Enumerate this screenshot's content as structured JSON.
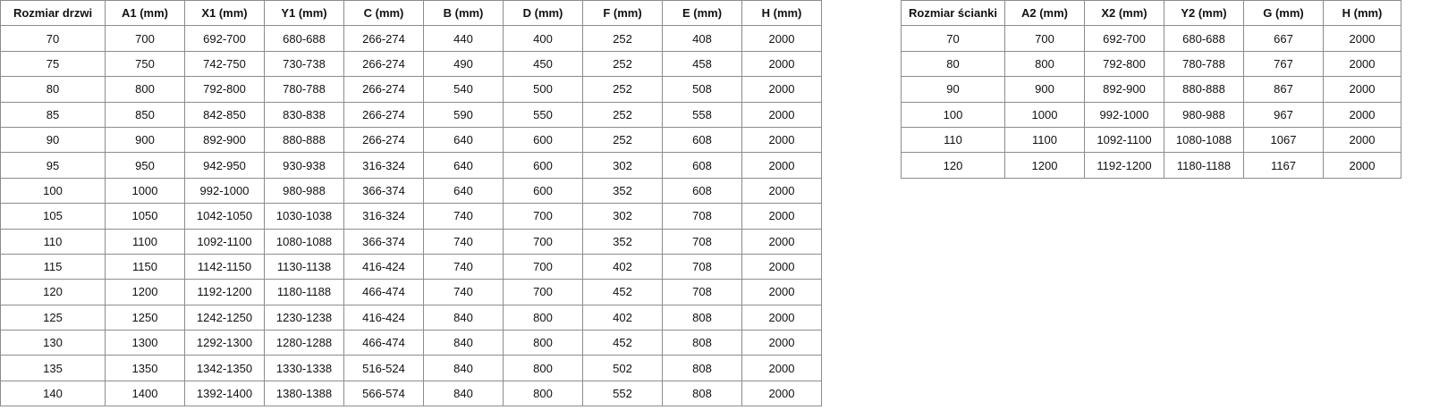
{
  "door_table": {
    "headers": [
      "Rozmiar drzwi",
      "A1 (mm)",
      "X1 (mm)",
      "Y1 (mm)",
      "C (mm)",
      "B (mm)",
      "D (mm)",
      "F (mm)",
      "E (mm)",
      "H (mm)"
    ],
    "rows": [
      [
        "70",
        "700",
        "692-700",
        "680-688",
        "266-274",
        "440",
        "400",
        "252",
        "408",
        "2000"
      ],
      [
        "75",
        "750",
        "742-750",
        "730-738",
        "266-274",
        "490",
        "450",
        "252",
        "458",
        "2000"
      ],
      [
        "80",
        "800",
        "792-800",
        "780-788",
        "266-274",
        "540",
        "500",
        "252",
        "508",
        "2000"
      ],
      [
        "85",
        "850",
        "842-850",
        "830-838",
        "266-274",
        "590",
        "550",
        "252",
        "558",
        "2000"
      ],
      [
        "90",
        "900",
        "892-900",
        "880-888",
        "266-274",
        "640",
        "600",
        "252",
        "608",
        "2000"
      ],
      [
        "95",
        "950",
        "942-950",
        "930-938",
        "316-324",
        "640",
        "600",
        "302",
        "608",
        "2000"
      ],
      [
        "100",
        "1000",
        "992-1000",
        "980-988",
        "366-374",
        "640",
        "600",
        "352",
        "608",
        "2000"
      ],
      [
        "105",
        "1050",
        "1042-1050",
        "1030-1038",
        "316-324",
        "740",
        "700",
        "302",
        "708",
        "2000"
      ],
      [
        "110",
        "1100",
        "1092-1100",
        "1080-1088",
        "366-374",
        "740",
        "700",
        "352",
        "708",
        "2000"
      ],
      [
        "115",
        "1150",
        "1142-1150",
        "1130-1138",
        "416-424",
        "740",
        "700",
        "402",
        "708",
        "2000"
      ],
      [
        "120",
        "1200",
        "1192-1200",
        "1180-1188",
        "466-474",
        "740",
        "700",
        "452",
        "708",
        "2000"
      ],
      [
        "125",
        "1250",
        "1242-1250",
        "1230-1238",
        "416-424",
        "840",
        "800",
        "402",
        "808",
        "2000"
      ],
      [
        "130",
        "1300",
        "1292-1300",
        "1280-1288",
        "466-474",
        "840",
        "800",
        "452",
        "808",
        "2000"
      ],
      [
        "135",
        "1350",
        "1342-1350",
        "1330-1338",
        "516-524",
        "840",
        "800",
        "502",
        "808",
        "2000"
      ],
      [
        "140",
        "1400",
        "1392-1400",
        "1380-1388",
        "566-574",
        "840",
        "800",
        "552",
        "808",
        "2000"
      ]
    ]
  },
  "wall_table": {
    "headers": [
      "Rozmiar ścianki",
      "A2 (mm)",
      "X2 (mm)",
      "Y2 (mm)",
      "G (mm)",
      "H (mm)"
    ],
    "rows": [
      [
        "70",
        "700",
        "692-700",
        "680-688",
        "667",
        "2000"
      ],
      [
        "80",
        "800",
        "792-800",
        "780-788",
        "767",
        "2000"
      ],
      [
        "90",
        "900",
        "892-900",
        "880-888",
        "867",
        "2000"
      ],
      [
        "100",
        "1000",
        "992-1000",
        "980-988",
        "967",
        "2000"
      ],
      [
        "110",
        "1100",
        "1092-1100",
        "1080-1088",
        "1067",
        "2000"
      ],
      [
        "120",
        "1200",
        "1192-1200",
        "1180-1188",
        "1167",
        "2000"
      ]
    ]
  }
}
